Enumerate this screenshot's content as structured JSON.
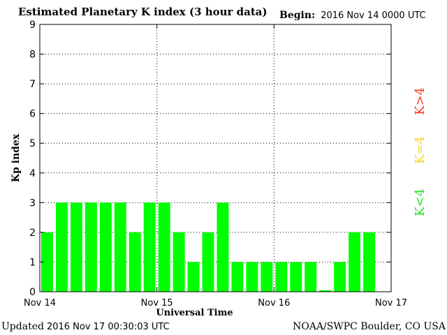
{
  "header": {
    "title": "Estimated Planetary K index (3 hour data)",
    "begin_label": "Begin:",
    "begin_value": "2016 Nov 14 0000 UTC"
  },
  "footer": {
    "updated_label": "Updated",
    "updated_value": "2016 Nov 17 00:30:03 UTC",
    "source": "NOAA/SWPC Boulder, CO USA"
  },
  "legend": [
    {
      "label": "K>4",
      "color": "#ff3b1f"
    },
    {
      "label": "K=4",
      "color": "#ffd21f"
    },
    {
      "label": "K<4",
      "color": "#22e822"
    }
  ],
  "chart_data": {
    "type": "bar",
    "title": "Estimated Planetary K index (3 hour data)",
    "xlabel": "Universal Time",
    "ylabel": "Kp index",
    "ylim": [
      0,
      9
    ],
    "yticks": [
      0,
      1,
      2,
      3,
      4,
      5,
      6,
      7,
      8,
      9
    ],
    "xtick_labels": [
      "Nov 14",
      "Nov 15",
      "Nov 16",
      "Nov 17"
    ],
    "interval_hours": 3,
    "bar_color": "#00ff00",
    "grid": true,
    "series": [
      {
        "values": [
          2,
          3,
          3,
          3,
          3,
          3,
          2,
          3,
          3,
          2,
          1,
          2,
          3,
          1,
          1,
          1,
          1,
          1,
          1,
          0.05,
          1,
          2,
          2
        ]
      }
    ]
  }
}
